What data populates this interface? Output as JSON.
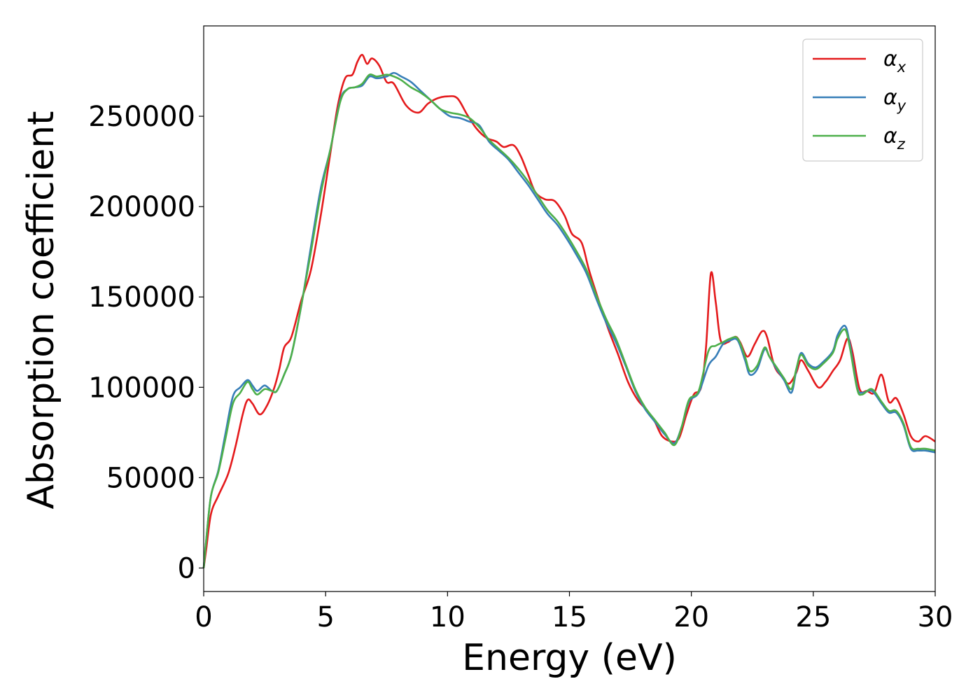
{
  "chart_data": {
    "type": "line",
    "xlabel": "Energy (eV)",
    "ylabel": "Absorption coefficient",
    "xlim": [
      0,
      30
    ],
    "ylim": [
      -13000,
      300000
    ],
    "xticks": [
      0,
      5,
      10,
      15,
      20,
      25,
      30
    ],
    "yticks": [
      0,
      50000,
      100000,
      150000,
      200000,
      250000
    ],
    "grid": false,
    "legend_position": "top-right",
    "series": [
      {
        "name": "α",
        "subscript": "x",
        "color": "#e41a1c",
        "points": [
          [
            0,
            0
          ],
          [
            0.1,
            10000
          ],
          [
            0.3,
            30000
          ],
          [
            0.6,
            40000
          ],
          [
            1.0,
            52000
          ],
          [
            1.3,
            67000
          ],
          [
            1.6,
            85000
          ],
          [
            1.8,
            93000
          ],
          [
            2.0,
            91000
          ],
          [
            2.3,
            85000
          ],
          [
            2.6,
            90000
          ],
          [
            2.9,
            100000
          ],
          [
            3.1,
            110000
          ],
          [
            3.3,
            122000
          ],
          [
            3.6,
            128000
          ],
          [
            4.0,
            148000
          ],
          [
            4.4,
            165000
          ],
          [
            4.8,
            195000
          ],
          [
            5.2,
            230000
          ],
          [
            5.5,
            256000
          ],
          [
            5.8,
            271000
          ],
          [
            6.1,
            273000
          ],
          [
            6.3,
            280000
          ],
          [
            6.5,
            284000
          ],
          [
            6.7,
            279000
          ],
          [
            6.9,
            282000
          ],
          [
            7.2,
            278000
          ],
          [
            7.5,
            269000
          ],
          [
            7.8,
            268000
          ],
          [
            8.3,
            256000
          ],
          [
            8.8,
            252000
          ],
          [
            9.2,
            257000
          ],
          [
            9.6,
            260000
          ],
          [
            10.0,
            261000
          ],
          [
            10.4,
            260000
          ],
          [
            10.8,
            251000
          ],
          [
            11.2,
            243000
          ],
          [
            11.6,
            238000
          ],
          [
            12.0,
            236000
          ],
          [
            12.3,
            233000
          ],
          [
            12.7,
            234000
          ],
          [
            13.0,
            228000
          ],
          [
            13.3,
            218000
          ],
          [
            13.6,
            208000
          ],
          [
            14.0,
            204000
          ],
          [
            14.4,
            203000
          ],
          [
            14.8,
            195000
          ],
          [
            15.1,
            185000
          ],
          [
            15.5,
            180000
          ],
          [
            15.8,
            165000
          ],
          [
            16.2,
            148000
          ],
          [
            16.6,
            132000
          ],
          [
            17.0,
            118000
          ],
          [
            17.4,
            103000
          ],
          [
            17.8,
            93000
          ],
          [
            18.2,
            87000
          ],
          [
            18.5,
            81000
          ],
          [
            18.8,
            73000
          ],
          [
            19.2,
            70000
          ],
          [
            19.5,
            72000
          ],
          [
            19.8,
            85000
          ],
          [
            20.1,
            96000
          ],
          [
            20.4,
            100000
          ],
          [
            20.6,
            122000
          ],
          [
            20.8,
            163000
          ],
          [
            21.0,
            147000
          ],
          [
            21.2,
            126000
          ],
          [
            21.5,
            125000
          ],
          [
            21.8,
            128000
          ],
          [
            22.0,
            125000
          ],
          [
            22.3,
            117000
          ],
          [
            22.6,
            124000
          ],
          [
            22.9,
            131000
          ],
          [
            23.1,
            128000
          ],
          [
            23.4,
            112000
          ],
          [
            23.7,
            106000
          ],
          [
            24.0,
            102000
          ],
          [
            24.3,
            108000
          ],
          [
            24.5,
            115000
          ],
          [
            24.8,
            109000
          ],
          [
            25.2,
            100000
          ],
          [
            25.5,
            103000
          ],
          [
            25.8,
            109000
          ],
          [
            26.1,
            115000
          ],
          [
            26.4,
            127000
          ],
          [
            26.6,
            120000
          ],
          [
            26.9,
            99000
          ],
          [
            27.2,
            98000
          ],
          [
            27.5,
            97000
          ],
          [
            27.8,
            107000
          ],
          [
            28.1,
            92000
          ],
          [
            28.4,
            94000
          ],
          [
            28.7,
            85000
          ],
          [
            29.0,
            73000
          ],
          [
            29.3,
            70000
          ],
          [
            29.6,
            73000
          ],
          [
            30.0,
            70000
          ]
        ]
      },
      {
        "name": "α",
        "subscript": "y",
        "color": "#377eb8",
        "points": [
          [
            0,
            0
          ],
          [
            0.1,
            15000
          ],
          [
            0.3,
            40000
          ],
          [
            0.6,
            54000
          ],
          [
            0.9,
            75000
          ],
          [
            1.2,
            95000
          ],
          [
            1.5,
            100000
          ],
          [
            1.8,
            104000
          ],
          [
            2.0,
            101000
          ],
          [
            2.2,
            98000
          ],
          [
            2.5,
            101000
          ],
          [
            2.8,
            98000
          ],
          [
            3.0,
            98000
          ],
          [
            3.3,
            107000
          ],
          [
            3.6,
            118000
          ],
          [
            4.0,
            145000
          ],
          [
            4.4,
            178000
          ],
          [
            4.8,
            210000
          ],
          [
            5.2,
            232000
          ],
          [
            5.6,
            259000
          ],
          [
            5.9,
            265000
          ],
          [
            6.2,
            266000
          ],
          [
            6.5,
            267000
          ],
          [
            6.8,
            272000
          ],
          [
            7.1,
            271000
          ],
          [
            7.5,
            272000
          ],
          [
            7.8,
            274000
          ],
          [
            8.1,
            272000
          ],
          [
            8.5,
            269000
          ],
          [
            8.9,
            264000
          ],
          [
            9.3,
            259000
          ],
          [
            9.7,
            254000
          ],
          [
            10.1,
            250000
          ],
          [
            10.5,
            249000
          ],
          [
            10.9,
            247000
          ],
          [
            11.3,
            245000
          ],
          [
            11.7,
            236000
          ],
          [
            12.1,
            231000
          ],
          [
            12.5,
            226000
          ],
          [
            12.9,
            219000
          ],
          [
            13.3,
            212000
          ],
          [
            13.7,
            204000
          ],
          [
            14.1,
            196000
          ],
          [
            14.5,
            190000
          ],
          [
            14.9,
            182000
          ],
          [
            15.3,
            173000
          ],
          [
            15.7,
            163000
          ],
          [
            16.1,
            149000
          ],
          [
            16.5,
            136000
          ],
          [
            16.9,
            125000
          ],
          [
            17.3,
            112000
          ],
          [
            17.7,
            98000
          ],
          [
            18.1,
            88000
          ],
          [
            18.5,
            81000
          ],
          [
            18.9,
            74000
          ],
          [
            19.3,
            69000
          ],
          [
            19.6,
            78000
          ],
          [
            19.9,
            92000
          ],
          [
            20.3,
            97000
          ],
          [
            20.7,
            112000
          ],
          [
            21.0,
            117000
          ],
          [
            21.3,
            124000
          ],
          [
            21.6,
            126000
          ],
          [
            21.9,
            126000
          ],
          [
            22.2,
            115000
          ],
          [
            22.4,
            107000
          ],
          [
            22.7,
            110000
          ],
          [
            23.0,
            121000
          ],
          [
            23.2,
            117000
          ],
          [
            23.5,
            110000
          ],
          [
            23.8,
            104000
          ],
          [
            24.1,
            97000
          ],
          [
            24.3,
            109000
          ],
          [
            24.5,
            119000
          ],
          [
            24.8,
            113000
          ],
          [
            25.1,
            111000
          ],
          [
            25.4,
            114000
          ],
          [
            25.8,
            120000
          ],
          [
            26.0,
            129000
          ],
          [
            26.3,
            134000
          ],
          [
            26.5,
            124000
          ],
          [
            26.8,
            100000
          ],
          [
            27.0,
            97000
          ],
          [
            27.4,
            98000
          ],
          [
            27.8,
            91000
          ],
          [
            28.1,
            86000
          ],
          [
            28.4,
            86000
          ],
          [
            28.7,
            79000
          ],
          [
            29.0,
            66000
          ],
          [
            29.3,
            65000
          ],
          [
            29.6,
            65000
          ],
          [
            30.0,
            64000
          ]
        ]
      },
      {
        "name": "α",
        "subscript": "z",
        "color": "#4daf4a",
        "points": [
          [
            0,
            0
          ],
          [
            0.1,
            15000
          ],
          [
            0.3,
            40000
          ],
          [
            0.6,
            53000
          ],
          [
            0.9,
            72000
          ],
          [
            1.2,
            91000
          ],
          [
            1.5,
            97000
          ],
          [
            1.8,
            103000
          ],
          [
            2.0,
            99000
          ],
          [
            2.2,
            96000
          ],
          [
            2.5,
            99000
          ],
          [
            2.8,
            98000
          ],
          [
            3.0,
            98000
          ],
          [
            3.3,
            107000
          ],
          [
            3.6,
            118000
          ],
          [
            4.0,
            145000
          ],
          [
            4.4,
            175000
          ],
          [
            4.8,
            207000
          ],
          [
            5.2,
            232000
          ],
          [
            5.6,
            258000
          ],
          [
            5.9,
            265000
          ],
          [
            6.2,
            266000
          ],
          [
            6.5,
            268000
          ],
          [
            6.8,
            273000
          ],
          [
            7.1,
            272000
          ],
          [
            7.5,
            273000
          ],
          [
            7.8,
            272000
          ],
          [
            8.1,
            270000
          ],
          [
            8.5,
            266000
          ],
          [
            8.9,
            263000
          ],
          [
            9.3,
            259000
          ],
          [
            9.7,
            254000
          ],
          [
            10.1,
            252000
          ],
          [
            10.5,
            251000
          ],
          [
            10.9,
            249000
          ],
          [
            11.3,
            244000
          ],
          [
            11.7,
            237000
          ],
          [
            12.1,
            232000
          ],
          [
            12.5,
            227000
          ],
          [
            12.9,
            221000
          ],
          [
            13.3,
            214000
          ],
          [
            13.7,
            206000
          ],
          [
            14.1,
            198000
          ],
          [
            14.5,
            192000
          ],
          [
            14.9,
            184000
          ],
          [
            15.3,
            175000
          ],
          [
            15.7,
            165000
          ],
          [
            16.1,
            151000
          ],
          [
            16.5,
            138000
          ],
          [
            16.9,
            127000
          ],
          [
            17.3,
            113000
          ],
          [
            17.7,
            99000
          ],
          [
            18.1,
            89000
          ],
          [
            18.5,
            82000
          ],
          [
            18.9,
            75000
          ],
          [
            19.3,
            68000
          ],
          [
            19.6,
            78000
          ],
          [
            19.9,
            93000
          ],
          [
            20.3,
            98000
          ],
          [
            20.7,
            120000
          ],
          [
            21.0,
            123000
          ],
          [
            21.3,
            125000
          ],
          [
            21.6,
            127000
          ],
          [
            21.9,
            127000
          ],
          [
            22.2,
            117000
          ],
          [
            22.4,
            109000
          ],
          [
            22.7,
            112000
          ],
          [
            23.0,
            122000
          ],
          [
            23.2,
            117000
          ],
          [
            23.5,
            111000
          ],
          [
            23.8,
            105000
          ],
          [
            24.1,
            99000
          ],
          [
            24.3,
            110000
          ],
          [
            24.5,
            118000
          ],
          [
            24.8,
            112000
          ],
          [
            25.1,
            110000
          ],
          [
            25.4,
            113000
          ],
          [
            25.8,
            119000
          ],
          [
            26.0,
            127000
          ],
          [
            26.3,
            132000
          ],
          [
            26.5,
            122000
          ],
          [
            26.8,
            99000
          ],
          [
            27.0,
            96000
          ],
          [
            27.4,
            99000
          ],
          [
            27.8,
            92000
          ],
          [
            28.1,
            87000
          ],
          [
            28.4,
            87000
          ],
          [
            28.7,
            80000
          ],
          [
            29.0,
            67000
          ],
          [
            29.3,
            66000
          ],
          [
            29.6,
            66000
          ],
          [
            30.0,
            65000
          ]
        ]
      }
    ]
  }
}
